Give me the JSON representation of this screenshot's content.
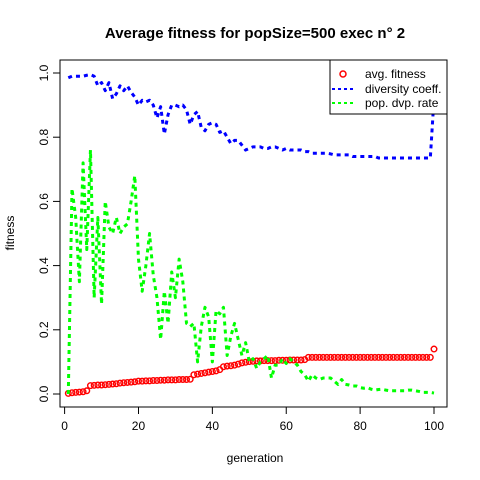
{
  "chart_data": {
    "type": "line",
    "title": "Average fitness for popSize=500 exec n° 2",
    "xlabel": "generation",
    "ylabel": "fitness",
    "xlim": [
      1,
      100
    ],
    "ylim": [
      0,
      1
    ],
    "x_ticks": [
      0,
      20,
      40,
      60,
      80,
      100
    ],
    "y_ticks": [
      0.0,
      0.2,
      0.4,
      0.6,
      0.8,
      1.0
    ],
    "x_tick_labels": [
      "0",
      "20",
      "40",
      "60",
      "80",
      "100"
    ],
    "y_tick_labels": [
      "0.0",
      "0.2",
      "0.4",
      "0.6",
      "0.8",
      "1.0"
    ],
    "grid": false,
    "legend_position": "top-right",
    "series": [
      {
        "name": "avg. fitness",
        "style": "points",
        "color": "#ff0000",
        "x": [
          1,
          2,
          3,
          4,
          5,
          6,
          7,
          8,
          9,
          10,
          11,
          12,
          13,
          14,
          15,
          16,
          17,
          18,
          19,
          20,
          21,
          22,
          23,
          24,
          25,
          26,
          27,
          28,
          29,
          30,
          31,
          32,
          33,
          34,
          35,
          36,
          37,
          38,
          39,
          40,
          41,
          42,
          43,
          44,
          45,
          46,
          47,
          48,
          49,
          50,
          51,
          52,
          53,
          54,
          55,
          56,
          57,
          58,
          59,
          60,
          61,
          62,
          63,
          64,
          65,
          66,
          67,
          68,
          69,
          70,
          71,
          72,
          73,
          74,
          75,
          76,
          77,
          78,
          79,
          80,
          81,
          82,
          83,
          84,
          85,
          86,
          87,
          88,
          89,
          90,
          91,
          92,
          93,
          94,
          95,
          96,
          97,
          98,
          99,
          100
        ],
        "values": [
          0.002,
          0.004,
          0.005,
          0.006,
          0.007,
          0.01,
          0.026,
          0.027,
          0.028,
          0.028,
          0.029,
          0.03,
          0.031,
          0.032,
          0.034,
          0.035,
          0.036,
          0.037,
          0.038,
          0.04,
          0.04,
          0.041,
          0.041,
          0.042,
          0.042,
          0.043,
          0.043,
          0.044,
          0.044,
          0.044,
          0.045,
          0.045,
          0.045,
          0.046,
          0.06,
          0.062,
          0.064,
          0.066,
          0.068,
          0.07,
          0.072,
          0.076,
          0.085,
          0.087,
          0.088,
          0.09,
          0.093,
          0.097,
          0.099,
          0.101,
          0.102,
          0.103,
          0.103,
          0.104,
          0.104,
          0.104,
          0.104,
          0.105,
          0.105,
          0.105,
          0.106,
          0.106,
          0.106,
          0.106,
          0.107,
          0.114,
          0.114,
          0.114,
          0.114,
          0.114,
          0.114,
          0.114,
          0.114,
          0.114,
          0.114,
          0.114,
          0.114,
          0.114,
          0.114,
          0.114,
          0.114,
          0.114,
          0.114,
          0.114,
          0.114,
          0.114,
          0.114,
          0.114,
          0.114,
          0.114,
          0.114,
          0.114,
          0.114,
          0.114,
          0.114,
          0.114,
          0.114,
          0.114,
          0.114,
          0.14
        ]
      },
      {
        "name": "diversity coeff.",
        "style": "dashed",
        "color": "#0000ff",
        "x": [
          1,
          2,
          3,
          4,
          5,
          6,
          7,
          8,
          9,
          10,
          11,
          12,
          13,
          14,
          15,
          16,
          17,
          18,
          19,
          20,
          21,
          22,
          23,
          24,
          25,
          26,
          27,
          28,
          29,
          30,
          31,
          32,
          33,
          34,
          35,
          36,
          37,
          38,
          39,
          40,
          41,
          42,
          43,
          44,
          45,
          46,
          47,
          48,
          49,
          50,
          51,
          52,
          53,
          54,
          55,
          56,
          57,
          58,
          59,
          60,
          61,
          62,
          63,
          64,
          65,
          66,
          67,
          68,
          69,
          70,
          71,
          72,
          73,
          74,
          75,
          76,
          77,
          78,
          79,
          80,
          81,
          82,
          83,
          84,
          85,
          86,
          87,
          88,
          89,
          90,
          91,
          92,
          93,
          94,
          95,
          96,
          97,
          98,
          99,
          100
        ],
        "values": [
          0.985,
          0.99,
          0.99,
          0.99,
          0.99,
          0.993,
          0.995,
          0.99,
          0.96,
          0.97,
          0.945,
          0.97,
          0.92,
          0.935,
          0.96,
          0.945,
          0.96,
          0.94,
          0.925,
          0.9,
          0.915,
          0.91,
          0.915,
          0.9,
          0.86,
          0.895,
          0.81,
          0.87,
          0.9,
          0.9,
          0.895,
          0.9,
          0.885,
          0.84,
          0.87,
          0.88,
          0.83,
          0.82,
          0.84,
          0.845,
          0.84,
          0.815,
          0.82,
          0.8,
          0.78,
          0.79,
          0.79,
          0.775,
          0.76,
          0.765,
          0.77,
          0.77,
          0.77,
          0.765,
          0.765,
          0.77,
          0.77,
          0.765,
          0.76,
          0.765,
          0.76,
          0.76,
          0.76,
          0.76,
          0.755,
          0.755,
          0.75,
          0.75,
          0.75,
          0.75,
          0.75,
          0.748,
          0.745,
          0.745,
          0.745,
          0.745,
          0.745,
          0.74,
          0.74,
          0.74,
          0.74,
          0.74,
          0.74,
          0.74,
          0.735,
          0.735,
          0.735,
          0.735,
          0.735,
          0.735,
          0.735,
          0.735,
          0.735,
          0.735,
          0.735,
          0.735,
          0.735,
          0.735,
          0.735,
          0.92
        ]
      },
      {
        "name": "pop. dvp. rate",
        "style": "dashed",
        "color": "#00ff00",
        "x": [
          1,
          2,
          3,
          4,
          5,
          6,
          7,
          8,
          9,
          10,
          11,
          12,
          13,
          14,
          15,
          16,
          17,
          18,
          19,
          20,
          21,
          22,
          23,
          24,
          25,
          26,
          27,
          28,
          29,
          30,
          31,
          32,
          33,
          34,
          35,
          36,
          37,
          38,
          39,
          40,
          41,
          42,
          43,
          44,
          45,
          46,
          47,
          48,
          49,
          50,
          51,
          52,
          53,
          54,
          55,
          56,
          57,
          58,
          59,
          60,
          61,
          62,
          63,
          64,
          65,
          66,
          67,
          68,
          69,
          70,
          71,
          72,
          73,
          74,
          75,
          76,
          77,
          78,
          79,
          80,
          81,
          82,
          83,
          84,
          85,
          86,
          87,
          88,
          89,
          90,
          91,
          92,
          93,
          94,
          95,
          96,
          97,
          98,
          99,
          100
        ],
        "values": [
          0.0,
          0.64,
          0.55,
          0.35,
          0.72,
          0.45,
          0.76,
          0.3,
          0.55,
          0.28,
          0.6,
          0.52,
          0.5,
          0.55,
          0.5,
          0.52,
          0.53,
          0.6,
          0.68,
          0.42,
          0.32,
          0.4,
          0.5,
          0.37,
          0.3,
          0.17,
          0.32,
          0.22,
          0.38,
          0.3,
          0.42,
          0.35,
          0.22,
          0.21,
          0.22,
          0.1,
          0.21,
          0.27,
          0.24,
          0.1,
          0.26,
          0.25,
          0.27,
          0.12,
          0.18,
          0.22,
          0.17,
          0.12,
          0.16,
          0.1,
          0.11,
          0.08,
          0.1,
          0.11,
          0.12,
          0.05,
          0.09,
          0.09,
          0.11,
          0.095,
          0.11,
          0.1,
          0.09,
          0.07,
          0.06,
          0.04,
          0.06,
          0.05,
          0.045,
          0.05,
          0.05,
          0.05,
          0.04,
          0.03,
          0.045,
          0.03,
          0.028,
          0.025,
          0.025,
          0.02,
          0.018,
          0.02,
          0.015,
          0.012,
          0.014,
          0.015,
          0.012,
          0.01,
          0.01,
          0.01,
          0.01,
          0.01,
          0.012,
          0.012,
          0.01,
          0.008,
          0.005,
          0.005,
          0.005,
          0.003
        ]
      }
    ]
  }
}
